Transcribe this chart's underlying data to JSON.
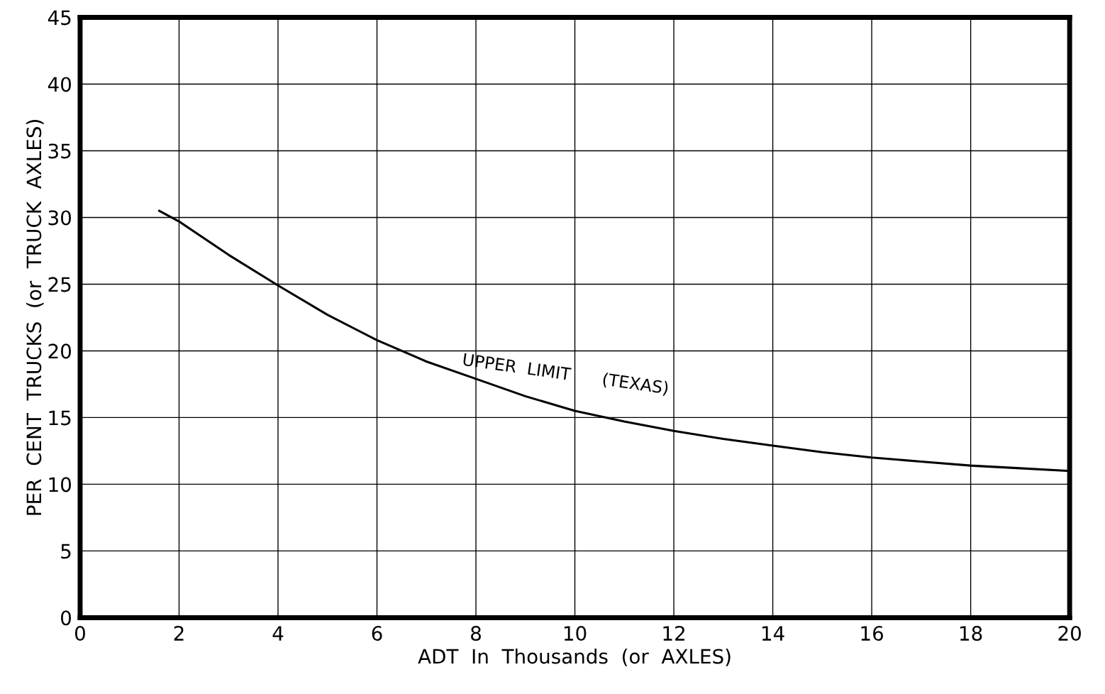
{
  "chart_data": {
    "type": "line",
    "xlabel": "ADT  In  Thousands  (or  AXLES)",
    "ylabel": "PER  CENT  TRUCKS  (or  TRUCK  AXLES)",
    "x": [
      1.6,
      2,
      3,
      4,
      5,
      6,
      6.5,
      7,
      8,
      9,
      10,
      11,
      12,
      13,
      14,
      15,
      16,
      17,
      18,
      19,
      20
    ],
    "series": [
      {
        "color": "#000000",
        "values": [
          30.5,
          29.7,
          27.2,
          24.9,
          22.7,
          20.8,
          20.0,
          19.2,
          17.9,
          16.6,
          15.5,
          14.7,
          14.0,
          13.4,
          12.9,
          12.4,
          12.0,
          11.7,
          11.4,
          11.2,
          11.0
        ]
      }
    ],
    "annotations": [
      "UPPER  LIMIT      (TEXAS)"
    ],
    "xlim": [
      0,
      20
    ],
    "ylim": [
      0,
      45
    ],
    "xticks": [
      0,
      2,
      4,
      6,
      8,
      10,
      12,
      14,
      16,
      18,
      20
    ],
    "yticks": [
      0,
      5,
      10,
      15,
      20,
      25,
      30,
      35,
      40,
      45
    ],
    "grid": true,
    "marker": "none",
    "line_style": "solid"
  }
}
